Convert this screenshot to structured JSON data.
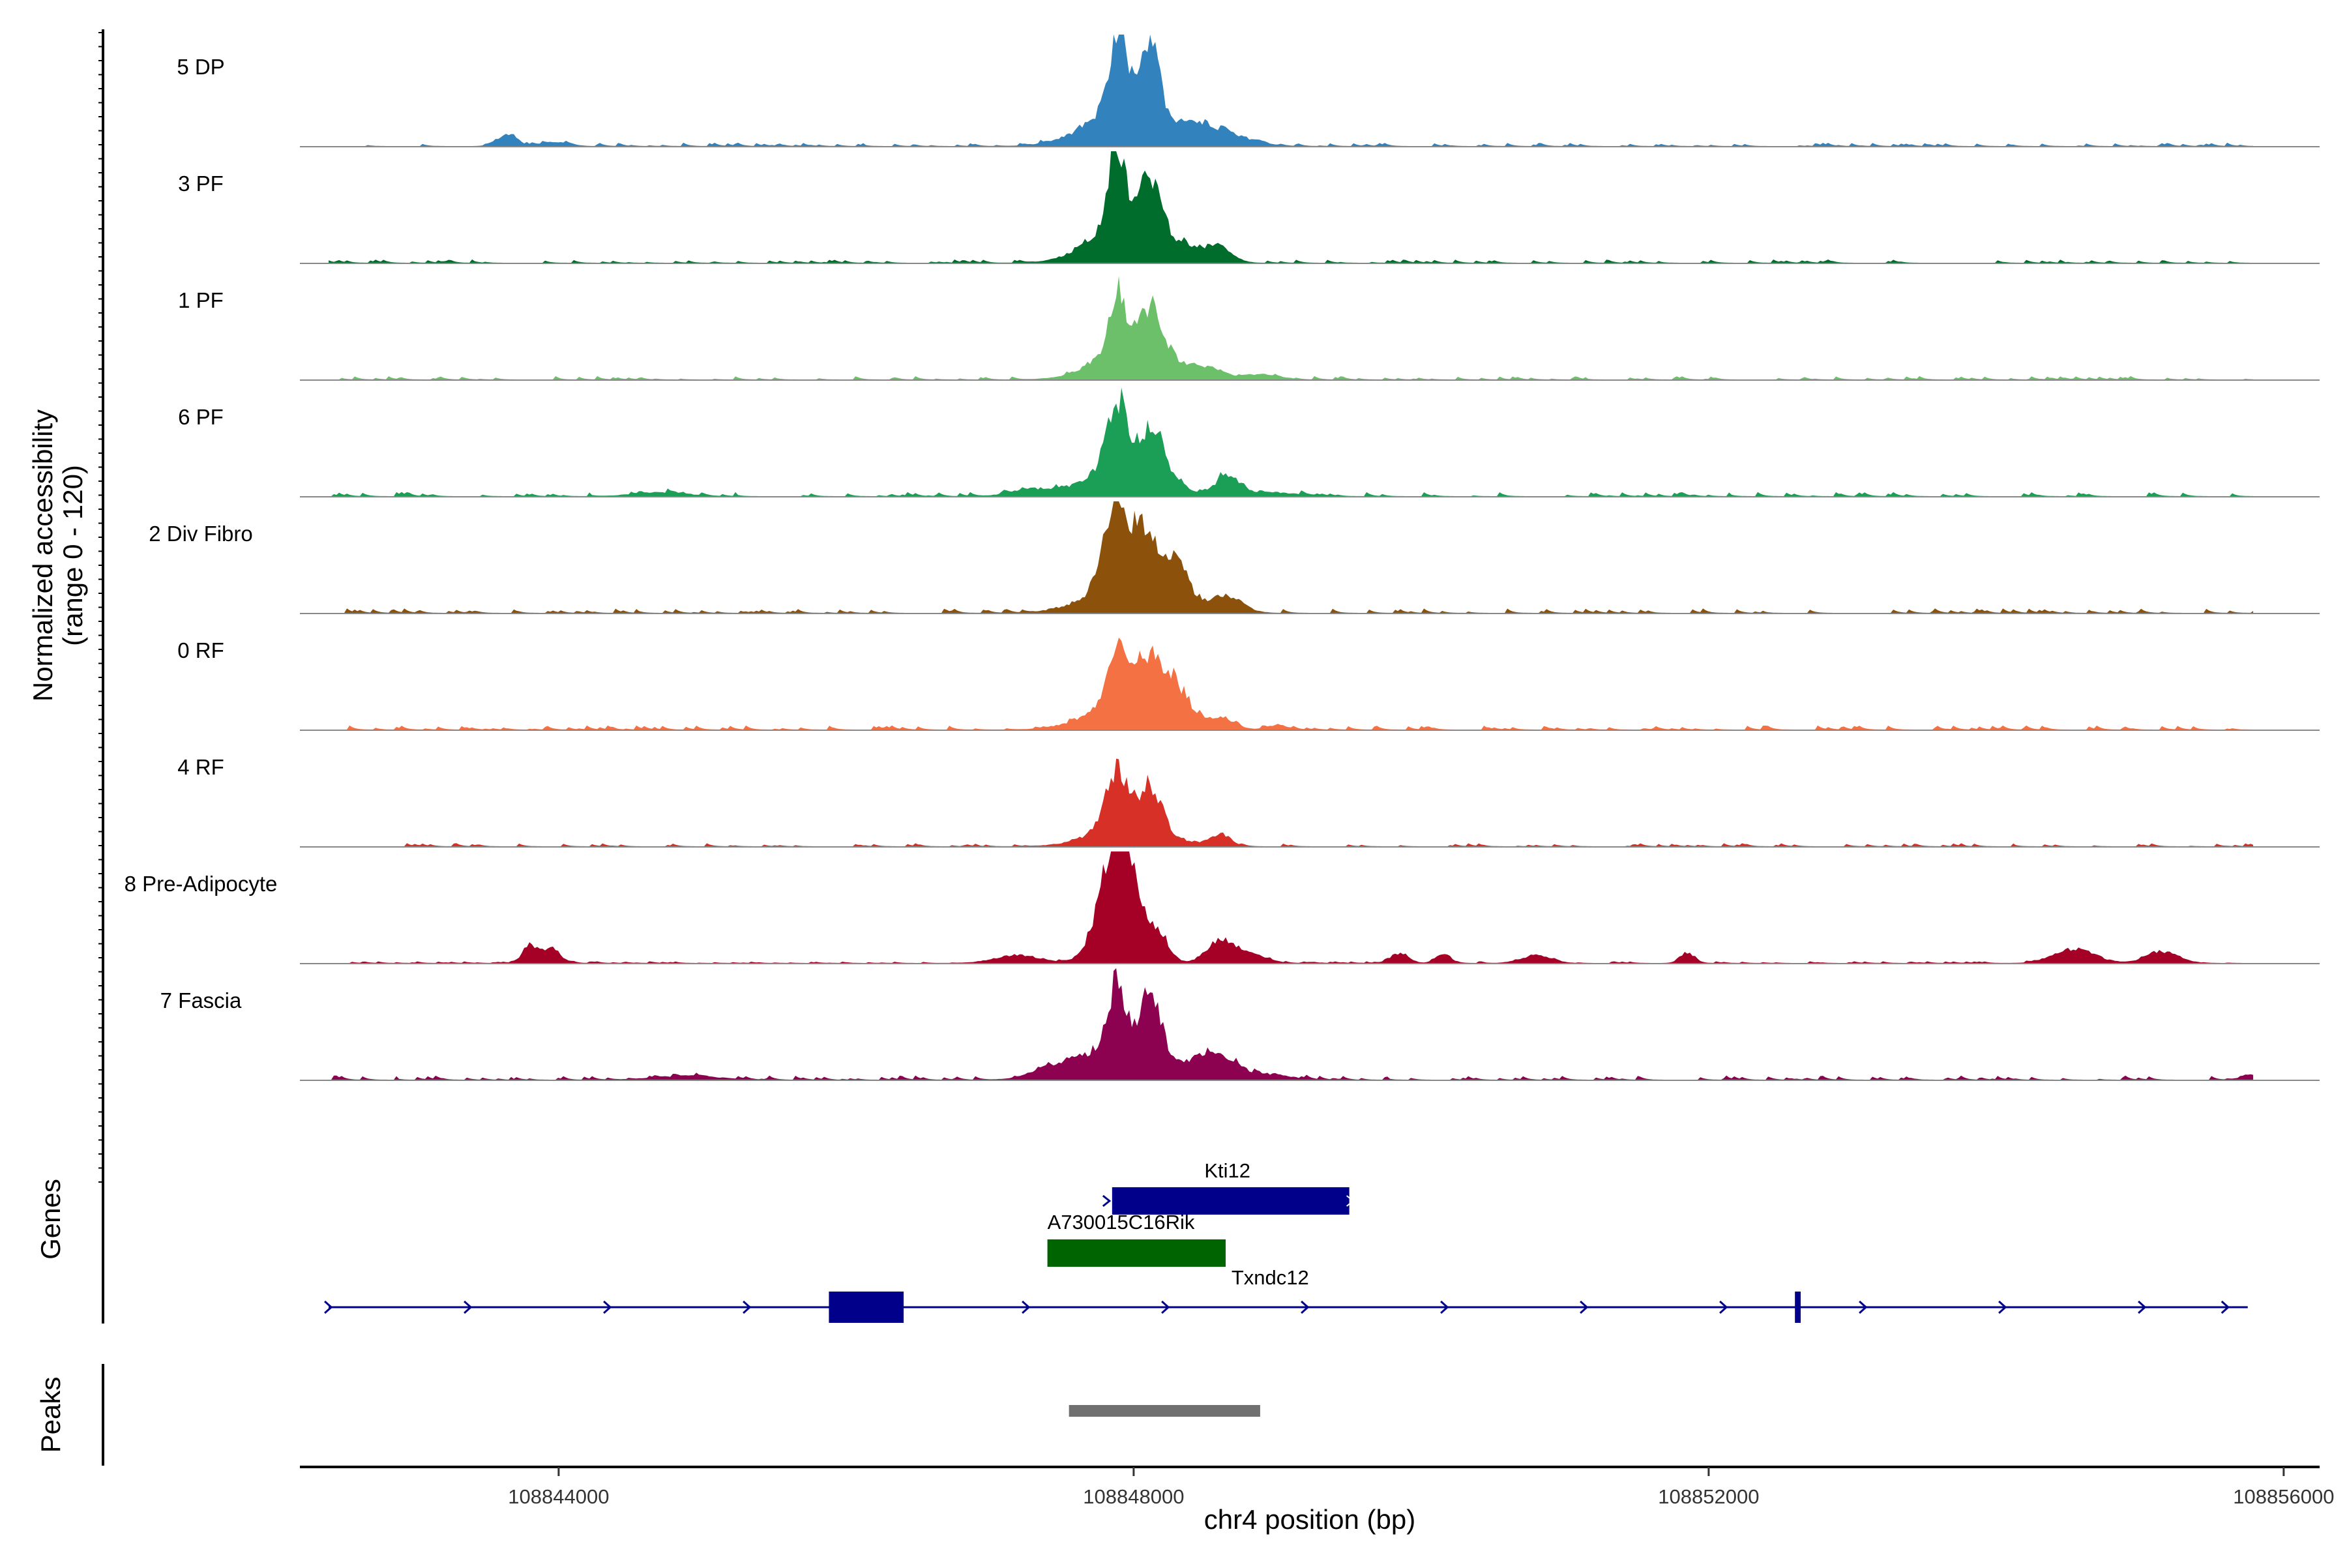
{
  "chart_data": {
    "type": "area",
    "title": "",
    "ylabel_line1": "Normalized accessibility",
    "ylabel_line2": "(range 0 - 120)",
    "ylim": [
      0,
      120
    ],
    "xlabel": "chr4 position (bp)",
    "xlim": [
      108842200,
      108856250
    ],
    "x_ticks": [
      108844000,
      108848000,
      108852000,
      108856000
    ],
    "x_tick_labels": [
      "108844000",
      "108848000",
      "108852000",
      "108856000"
    ],
    "series": [
      {
        "name": "5 DP",
        "color": "#3182BD",
        "peaks": [
          [
            108847900,
            80,
            60
          ],
          [
            108848120,
            72,
            60
          ],
          [
            108847960,
            42,
            260
          ],
          [
            108848480,
            18,
            140
          ],
          [
            108848750,
            7,
            140
          ],
          [
            108843640,
            12,
            70
          ],
          [
            108843980,
            4,
            90
          ]
        ],
        "noise": 1.2
      },
      {
        "name": "3 PF",
        "color": "#006D2C",
        "peaks": [
          [
            108847880,
            85,
            60
          ],
          [
            108848120,
            58,
            70
          ],
          [
            108847950,
            40,
            240
          ],
          [
            108848600,
            14,
            90
          ],
          [
            108848350,
            10,
            150
          ]
        ],
        "noise": 1.2
      },
      {
        "name": "1 PF",
        "color": "#6CC06A",
        "peaks": [
          [
            108847890,
            62,
            60
          ],
          [
            108848130,
            52,
            80
          ],
          [
            108847950,
            30,
            230
          ],
          [
            108848450,
            12,
            150
          ],
          [
            108848900,
            5,
            120
          ]
        ],
        "noise": 1.2
      },
      {
        "name": "6 PF",
        "color": "#1B9E55",
        "peaks": [
          [
            108847880,
            70,
            70
          ],
          [
            108848140,
            50,
            80
          ],
          [
            108847950,
            33,
            240
          ],
          [
            108848650,
            20,
            80
          ],
          [
            108847300,
            7,
            150
          ],
          [
            108848950,
            4,
            200
          ],
          [
            108844700,
            4,
            180
          ]
        ],
        "noise": 1.5
      },
      {
        "name": "2 Div Fibro",
        "color": "#8C510A",
        "peaks": [
          [
            108847870,
            92,
            80
          ],
          [
            108848080,
            58,
            90
          ],
          [
            108848300,
            48,
            80
          ],
          [
            108847950,
            30,
            260
          ],
          [
            108848650,
            16,
            110
          ]
        ],
        "noise": 1.6
      },
      {
        "name": "0 RF",
        "color": "#F47144",
        "peaks": [
          [
            108847880,
            66,
            60
          ],
          [
            108848110,
            52,
            100
          ],
          [
            108848300,
            32,
            100
          ],
          [
            108847950,
            28,
            250
          ],
          [
            108848600,
            12,
            90
          ],
          [
            108849000,
            4,
            80
          ]
        ],
        "noise": 1.5
      },
      {
        "name": "4 RF",
        "color": "#D73027",
        "peaks": [
          [
            108847880,
            55,
            70
          ],
          [
            108848120,
            45,
            80
          ],
          [
            108847950,
            25,
            230
          ],
          [
            108848600,
            12,
            70
          ]
        ],
        "noise": 1.1
      },
      {
        "name": "8 Pre-Adipocyte",
        "color": "#A50026",
        "peaks": [
          [
            108847930,
            100,
            90
          ],
          [
            108847830,
            65,
            110
          ],
          [
            108848150,
            35,
            80
          ],
          [
            108848600,
            22,
            90
          ],
          [
            108848800,
            10,
            110
          ],
          [
            108843800,
            18,
            50
          ],
          [
            108843950,
            16,
            60
          ],
          [
            108847200,
            8,
            160
          ],
          [
            108854550,
            14,
            140
          ],
          [
            108855150,
            12,
            110
          ],
          [
            108851850,
            10,
            50
          ],
          [
            108849850,
            10,
            60
          ],
          [
            108850150,
            10,
            50
          ],
          [
            108850800,
            8,
            100
          ]
        ],
        "noise": 0.6
      },
      {
        "name": "7 Fascia",
        "color": "#8C0250",
        "peaks": [
          [
            108847880,
            70,
            60
          ],
          [
            108848120,
            62,
            70
          ],
          [
            108847950,
            32,
            270
          ],
          [
            108848560,
            24,
            150
          ],
          [
            108847500,
            10,
            180
          ],
          [
            108848950,
            5,
            150
          ],
          [
            108844900,
            4,
            220
          ],
          [
            108855800,
            5,
            80
          ]
        ],
        "noise": 1.5
      }
    ],
    "genes_label": "Genes",
    "peaks_label": "Peaks",
    "genes": [
      {
        "name": "Kti12",
        "color": "#00008B",
        "start": 108847850,
        "end": 108849500,
        "has_arrow": true
      },
      {
        "name": "A730015C16Rik",
        "color": "#006400",
        "start": 108847400,
        "end": 108848640,
        "has_arrow": false
      },
      {
        "name": "Txndc12",
        "color": "#00008B",
        "start": 108842400,
        "end": 108855750,
        "has_arrow": true,
        "exons": [
          [
            108845880,
            108846400
          ],
          [
            108852600,
            108852640
          ]
        ]
      }
    ],
    "peak_regions": [
      {
        "start": 108847550,
        "end": 108848880,
        "color": "#707070"
      }
    ]
  }
}
